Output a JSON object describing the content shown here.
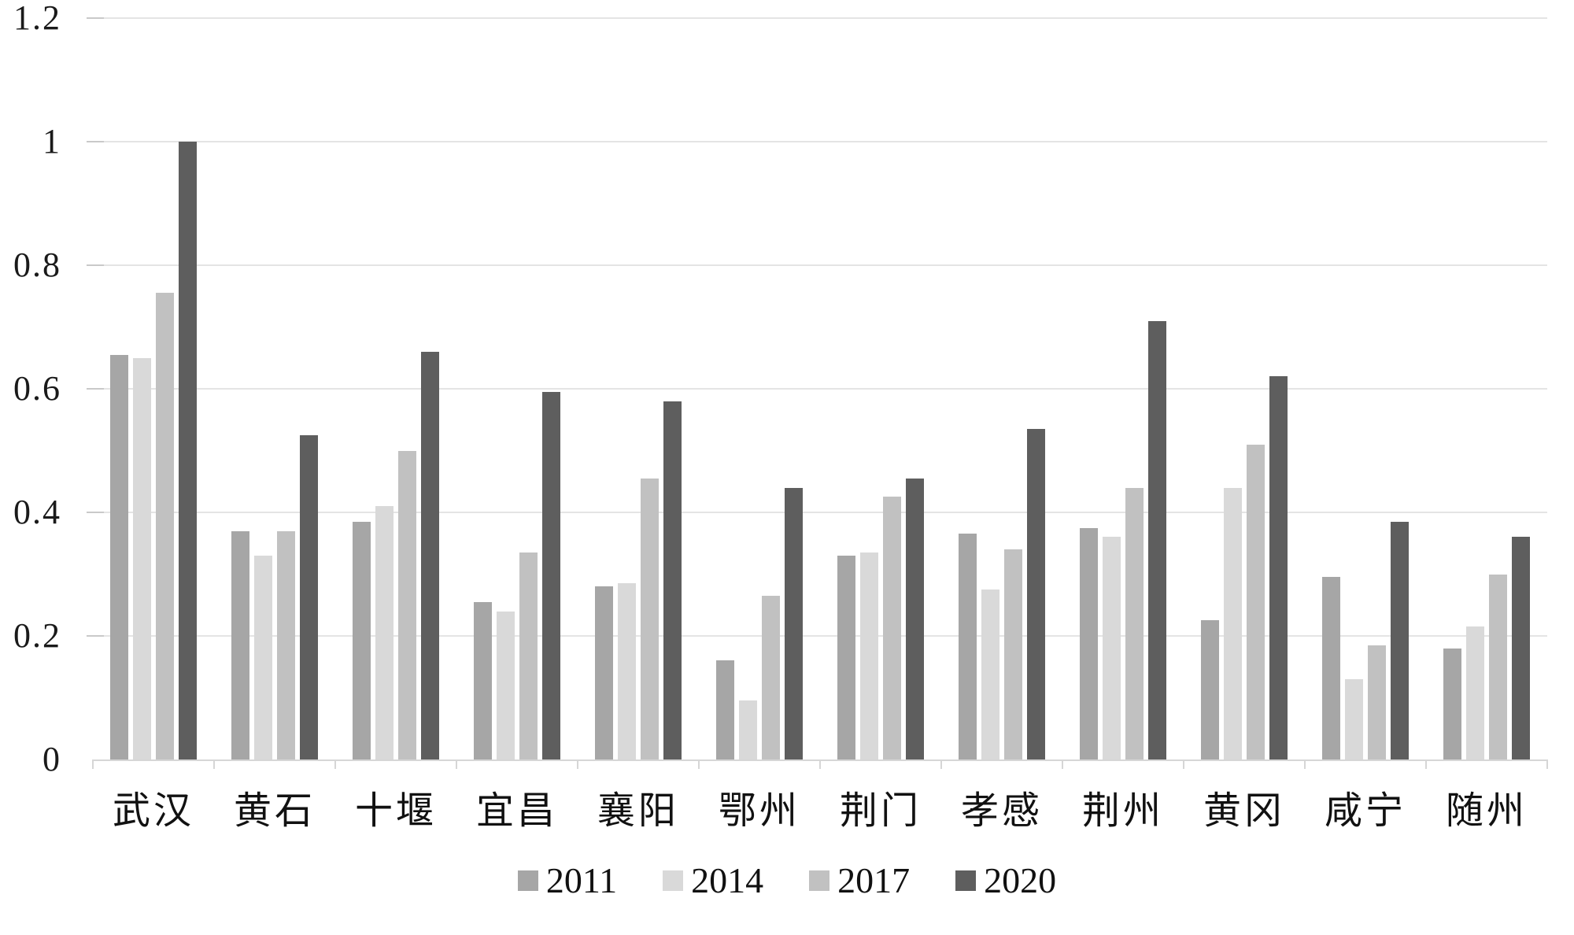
{
  "chart_data": {
    "type": "bar",
    "title": "",
    "xlabel": "",
    "ylabel": "",
    "categories": [
      "武汉",
      "黄石",
      "十堰",
      "宜昌",
      "襄阳",
      "鄂州",
      "荆门",
      "孝感",
      "荆州",
      "黄冈",
      "咸宁",
      "随州"
    ],
    "series": [
      {
        "name": "2011",
        "color": "#a6a6a6",
        "values": [
          0.655,
          0.37,
          0.385,
          0.255,
          0.28,
          0.16,
          0.33,
          0.365,
          0.375,
          0.225,
          0.295,
          0.18
        ]
      },
      {
        "name": "2014",
        "color": "#d9d9d9",
        "values": [
          0.65,
          0.33,
          0.41,
          0.24,
          0.285,
          0.095,
          0.335,
          0.275,
          0.36,
          0.44,
          0.13,
          0.215
        ]
      },
      {
        "name": "2017",
        "color": "#c1c1c1",
        "values": [
          0.755,
          0.37,
          0.5,
          0.335,
          0.455,
          0.265,
          0.425,
          0.34,
          0.44,
          0.51,
          0.185,
          0.3
        ]
      },
      {
        "name": "2020",
        "color": "#5e5e5e",
        "values": [
          1.0,
          0.525,
          0.66,
          0.595,
          0.58,
          0.44,
          0.455,
          0.535,
          0.71,
          0.62,
          0.385,
          0.36
        ]
      }
    ],
    "y_axis": {
      "min": 0,
      "max": 1.2,
      "tick_step": 0.2,
      "ticks": [
        0,
        0.2,
        0.4,
        0.6,
        0.8,
        1.0,
        1.2
      ],
      "tick_labels": [
        "0",
        "0.2",
        "0.4",
        "0.6",
        "0.8",
        "1",
        "1.2"
      ]
    },
    "grid": true,
    "legend_position": "bottom",
    "legend_entries": [
      "2011",
      "2014",
      "2017",
      "2020"
    ]
  },
  "colors": {
    "background": "#ffffff",
    "gridline": "#e4e4e4",
    "axis": "#d6d6d6",
    "text": "#111111"
  }
}
